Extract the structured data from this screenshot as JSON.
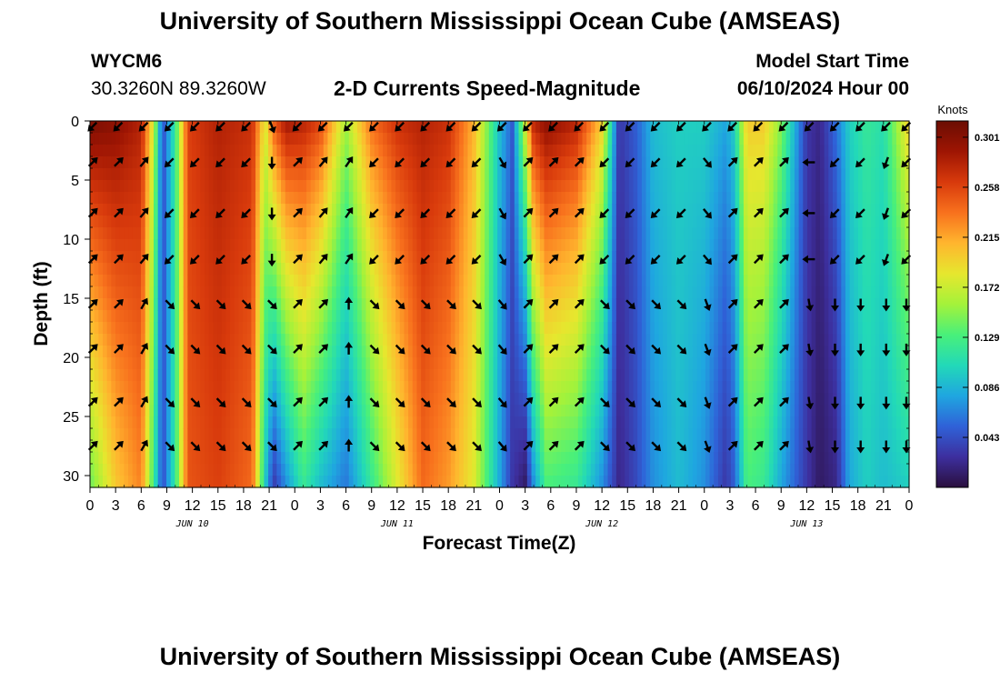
{
  "header": {
    "title": "University of Southern Mississippi Ocean Cube (AMSEAS)",
    "station": "WYCM6",
    "coordinates": "30.3260N  89.3260W",
    "subtitle": "2-D Currents Speed-Magnitude",
    "model_start_label": "Model Start Time",
    "model_start_value": "06/10/2024 Hour 00"
  },
  "footer": {
    "title": "University of Southern Mississippi Ocean Cube (AMSEAS)"
  },
  "colors": {
    "scale": [
      "#2a0f3d",
      "#3d2f9e",
      "#2f62d8",
      "#1fa6e0",
      "#22d9b8",
      "#49f07a",
      "#a4f23a",
      "#e6e72e",
      "#ffb52e",
      "#f8711d",
      "#d83a0c",
      "#9e1503",
      "#6b0d03"
    ],
    "arrow": "#000000"
  },
  "chart_data": {
    "type": "heatmap",
    "title": "2-D Currents Speed-Magnitude",
    "xlabel": "Forecast Time(Z)",
    "ylabel": "Depth (ft)",
    "x_range_hours": [
      0,
      96
    ],
    "x_tick_hours": [
      0,
      3,
      6,
      9,
      12,
      15,
      18,
      21,
      24,
      27,
      30,
      33,
      36,
      39,
      42,
      45,
      48,
      51,
      54,
      57,
      60,
      63,
      66,
      69,
      72,
      75,
      78,
      81,
      84,
      87,
      90,
      93,
      96
    ],
    "x_tick_labels": [
      "0",
      "3",
      "6",
      "9",
      "12",
      "15",
      "18",
      "21",
      "0",
      "3",
      "6",
      "9",
      "12",
      "15",
      "18",
      "21",
      "0",
      "3",
      "6",
      "9",
      "12",
      "15",
      "18",
      "21",
      "0",
      "3",
      "6",
      "9",
      "12",
      "15",
      "18",
      "21",
      "0"
    ],
    "day_labels": [
      {
        "label": "JUN 10",
        "hour": 12
      },
      {
        "label": "JUN 11",
        "hour": 36
      },
      {
        "label": "JUN 12",
        "hour": 60
      },
      {
        "label": "JUN 13",
        "hour": 84
      }
    ],
    "ylim": [
      0,
      31
    ],
    "y_ticks": [
      0,
      5,
      10,
      15,
      20,
      25,
      30
    ],
    "colorbar": {
      "unit": "Knots",
      "min": 0.0,
      "max": 0.315,
      "tick_values": [
        0.043,
        0.086,
        0.129,
        0.172,
        0.215,
        0.258,
        0.301
      ],
      "tick_labels": [
        "0.043",
        "0.086",
        "0.129",
        "0.172",
        "0.215",
        "0.258",
        "0.301"
      ]
    },
    "speed_profile": {
      "description": "Approximate current speed (knots) by forecast hour at surface (0 ft) and bottom (30 ft)",
      "hours": [
        0,
        3,
        6,
        7.5,
        8.5,
        10,
        11.5,
        15,
        19,
        20.5,
        21.5,
        23,
        25,
        27,
        30,
        33,
        36,
        39,
        42,
        45,
        48,
        49.5,
        51,
        52,
        53.5,
        57,
        60,
        62,
        64,
        66,
        69,
        72,
        74.5,
        75.5,
        77,
        79,
        81,
        84,
        85.5,
        87.5,
        89,
        91,
        93,
        96
      ],
      "surface": [
        0.31,
        0.3,
        0.28,
        0.17,
        0.04,
        0.12,
        0.26,
        0.28,
        0.27,
        0.18,
        0.25,
        0.29,
        0.28,
        0.26,
        0.16,
        0.24,
        0.27,
        0.28,
        0.27,
        0.21,
        0.09,
        0.05,
        0.18,
        0.28,
        0.3,
        0.28,
        0.2,
        0.03,
        0.05,
        0.09,
        0.1,
        0.1,
        0.08,
        0.1,
        0.2,
        0.2,
        0.15,
        0.03,
        0.02,
        0.06,
        0.1,
        0.12,
        0.11,
        0.2
      ],
      "bottom": [
        0.14,
        0.2,
        0.23,
        0.12,
        0.04,
        0.12,
        0.25,
        0.26,
        0.24,
        0.1,
        0.03,
        0.07,
        0.12,
        0.09,
        0.06,
        0.12,
        0.18,
        0.24,
        0.22,
        0.18,
        0.08,
        0.03,
        0.01,
        0.07,
        0.13,
        0.12,
        0.07,
        0.02,
        0.04,
        0.07,
        0.09,
        0.07,
        0.03,
        0.05,
        0.13,
        0.12,
        0.08,
        0.03,
        0.01,
        0.02,
        0.08,
        0.1,
        0.09,
        0.1
      ]
    },
    "vectors": {
      "description": "Current direction (degrees, direction toward, 0 = up/north, clockwise) at surface, mid and bottom depth",
      "depth_rows_ft": [
        0,
        3.5,
        7.8,
        11.7,
        15.5,
        19.3,
        23.8,
        27.5
      ],
      "hours": [
        0,
        3,
        6,
        9,
        12,
        15,
        18,
        21,
        24,
        27,
        30,
        33,
        36,
        39,
        42,
        45,
        48,
        51,
        54,
        57,
        60,
        63,
        66,
        69,
        72,
        75,
        78,
        81,
        84,
        87,
        90,
        93,
        96
      ],
      "surface": [
        225,
        225,
        225,
        225,
        225,
        225,
        225,
        160,
        225,
        225,
        225,
        225,
        225,
        225,
        225,
        225,
        225,
        225,
        225,
        225,
        225,
        225,
        225,
        225,
        225,
        225,
        225,
        225,
        225,
        225,
        225,
        225,
        225
      ],
      "mid": [
        45,
        45,
        40,
        225,
        225,
        225,
        225,
        180,
        45,
        40,
        35,
        225,
        225,
        225,
        225,
        225,
        150,
        45,
        45,
        45,
        225,
        225,
        225,
        225,
        140,
        45,
        45,
        45,
        270,
        225,
        225,
        200,
        225
      ],
      "bottom": [
        45,
        45,
        30,
        135,
        135,
        135,
        135,
        135,
        45,
        45,
        0,
        135,
        135,
        135,
        135,
        135,
        140,
        45,
        45,
        45,
        135,
        135,
        135,
        135,
        160,
        45,
        45,
        45,
        170,
        180,
        180,
        180,
        180
      ]
    }
  }
}
